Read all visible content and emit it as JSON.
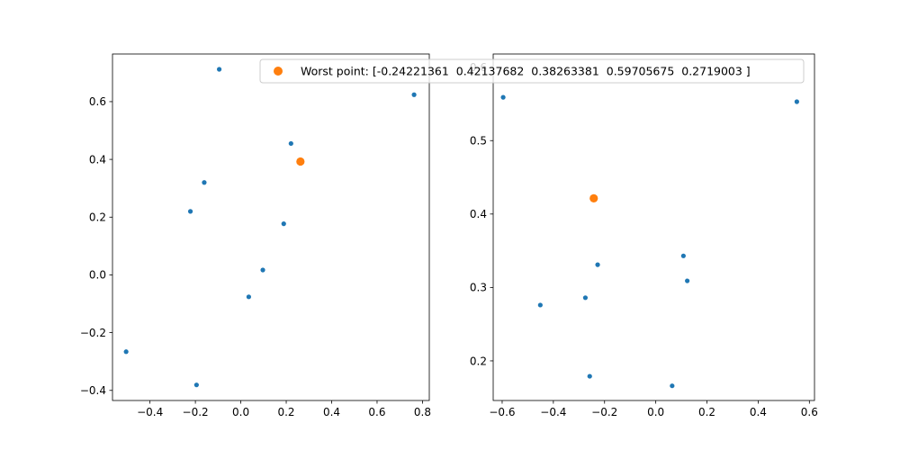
{
  "colors": {
    "series": "#1f77b4",
    "highlight": "#ff7f0e"
  },
  "legend": {
    "label": "Worst point: [-0.24221361  0.42137682  0.38263381  0.59705675  0.2719003 ]"
  },
  "chart_data": [
    {
      "type": "scatter",
      "title": "",
      "xlabel": "",
      "ylabel": "",
      "xlim": [
        -0.565,
        0.83
      ],
      "ylim": [
        -0.435,
        0.765
      ],
      "xticks": [
        -0.4,
        -0.2,
        0.0,
        0.2,
        0.4,
        0.6,
        0.8
      ],
      "xtick_labels": [
        "−0.4",
        "−0.2",
        "0.0",
        "0.2",
        "0.4",
        "0.6",
        "0.8"
      ],
      "yticks": [
        -0.4,
        -0.2,
        0.0,
        0.2,
        0.4,
        0.6
      ],
      "ytick_labels": [
        "−0.4",
        "−0.2",
        "0.0",
        "0.2",
        "0.4",
        "0.6"
      ],
      "grid": false,
      "series": [
        {
          "points": [
            [
              -0.095,
              0.712
            ],
            [
              0.763,
              0.624
            ],
            [
              0.221,
              0.455
            ],
            [
              -0.161,
              0.32
            ],
            [
              -0.222,
              0.22
            ],
            [
              0.189,
              0.177
            ],
            [
              0.097,
              0.017
            ],
            [
              0.035,
              -0.076
            ],
            [
              -0.505,
              -0.266
            ],
            [
              -0.195,
              -0.381
            ]
          ]
        },
        {
          "points": [
            [
              0.2626,
              0.3926
            ]
          ],
          "highlight": true
        }
      ]
    },
    {
      "type": "scatter",
      "title": "",
      "xlabel": "",
      "ylabel": "",
      "xlim": [
        -0.635,
        0.62
      ],
      "ylim": [
        0.146,
        0.618
      ],
      "xticks": [
        -0.6,
        -0.4,
        -0.2,
        0.0,
        0.2,
        0.4,
        0.6
      ],
      "xtick_labels": [
        "−0.6",
        "−0.4",
        "−0.2",
        "0.0",
        "0.2",
        "0.4",
        "0.6"
      ],
      "yticks": [
        0.2,
        0.3,
        0.4,
        0.5,
        0.6
      ],
      "ytick_labels": [
        "0.2",
        "0.3",
        "0.4",
        "0.5",
        "0.6"
      ],
      "grid": false,
      "series": [
        {
          "points": [
            [
              -0.596,
              0.559
            ],
            [
              0.551,
              0.553
            ],
            [
              0.108,
              0.343
            ],
            [
              -0.227,
              0.331
            ],
            [
              0.123,
              0.309
            ],
            [
              -0.275,
              0.286
            ],
            [
              -0.451,
              0.276
            ],
            [
              -0.258,
              0.179
            ],
            [
              0.064,
              0.166
            ]
          ]
        },
        {
          "points": [
            [
              -0.2422,
              0.4214
            ]
          ],
          "highlight": true
        }
      ]
    }
  ]
}
